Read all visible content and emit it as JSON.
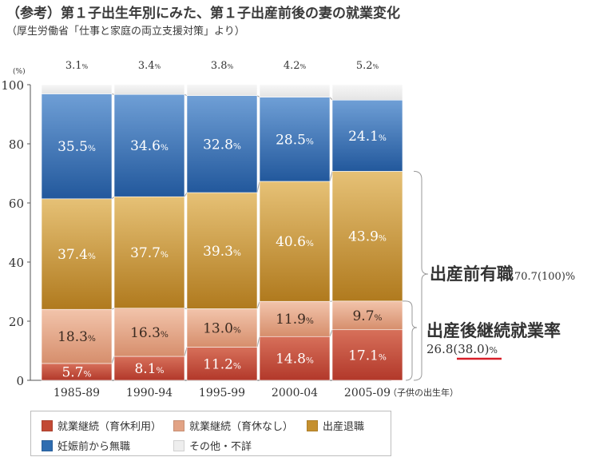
{
  "title": "（参考）第１子出生年別にみた、第１子出産前後の妻の就業変化",
  "subtitle": "（厚生労働省「仕事と家庭の両立支援対策」より）",
  "colors": {
    "cont_leave": "#c24a35",
    "cont_noleave": "#e2a385",
    "quit": "#c5902f",
    "unemployed": "#2f6db0",
    "other": "#eeeeee"
  },
  "legend": [
    {
      "label": "就業継続（育休利用）",
      "color_key": "cont_leave"
    },
    {
      "label": "就業継続（育休なし）",
      "color_key": "cont_noleave"
    },
    {
      "label": "出産退職",
      "color_key": "quit"
    },
    {
      "label": "妊娠前から無職",
      "color_key": "unemployed"
    },
    {
      "label": "その他・不詳",
      "color_key": "other"
    }
  ],
  "annotations": {
    "prebirth_label": "出産前有職",
    "prebirth_value": "70.7(100)%",
    "continue_label": "出産後継続就業率",
    "continue_value_prefix": "26.8",
    "continue_value_underlined": "(38.0)",
    "continue_value_suffix": "%"
  },
  "chart_data": {
    "type": "bar",
    "stacked": true,
    "categories": [
      "1985-89",
      "1990-94",
      "1995-99",
      "2000-04",
      "2005-09"
    ],
    "category_suffix": "（子供の出生年）",
    "ylabel": "(%)",
    "ylim": [
      0,
      100
    ],
    "yticks": [
      0,
      20,
      40,
      60,
      80,
      100
    ],
    "series": [
      {
        "name": "就業継続（育休利用）",
        "color_key": "cont_leave",
        "values": [
          5.7,
          8.1,
          11.2,
          14.8,
          17.1
        ],
        "labels": [
          "5.7",
          "8.1",
          "11.2",
          "14.8",
          "17.1"
        ]
      },
      {
        "name": "就業継続（育休なし）",
        "color_key": "cont_noleave",
        "values": [
          18.3,
          16.3,
          13.0,
          11.9,
          9.7
        ],
        "labels": [
          "18.3",
          "16.3",
          "13.0",
          "11.9",
          "9.7"
        ]
      },
      {
        "name": "出産退職",
        "color_key": "quit",
        "values": [
          37.4,
          37.7,
          39.3,
          40.6,
          43.9
        ],
        "labels": [
          "37.4",
          "37.7",
          "39.3",
          "40.6",
          "43.9"
        ]
      },
      {
        "name": "妊娠前から無職",
        "color_key": "unemployed",
        "values": [
          35.5,
          34.6,
          32.8,
          28.5,
          24.1
        ],
        "labels": [
          "35.5",
          "34.6",
          "32.8",
          "28.5",
          "24.1"
        ]
      },
      {
        "name": "その他・不詳",
        "color_key": "other",
        "values": [
          3.1,
          3.4,
          3.8,
          4.2,
          5.2
        ],
        "labels": [
          "3.1",
          "3.4",
          "3.8",
          "4.2",
          "5.2"
        ]
      }
    ],
    "label_unit": "%"
  }
}
